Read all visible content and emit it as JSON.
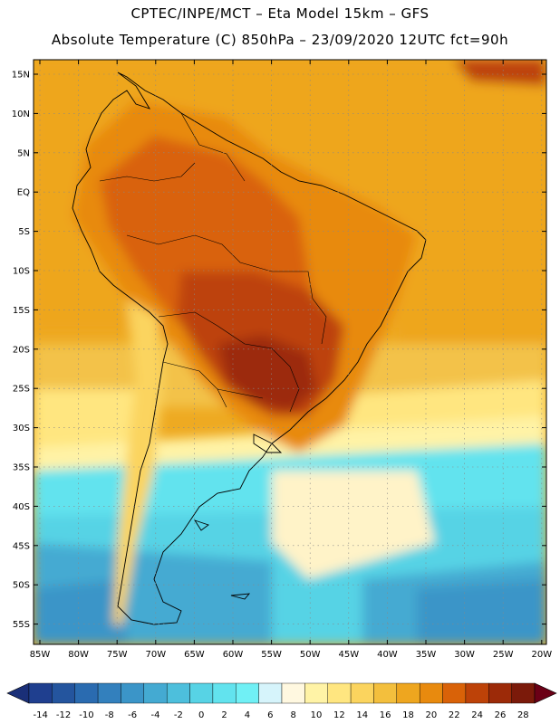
{
  "title_line1": "CPTEC/INPE/MCT –  Eta Model 15km – GFS",
  "title_line2": "Absolute Temperature (C) 850hPa – 23/09/2020 12UTC fct=90h",
  "lat_labels": [
    "15N",
    "10N",
    "5N",
    "EQ",
    "5S",
    "10S",
    "15S",
    "20S",
    "25S",
    "30S",
    "35S",
    "40S",
    "45S",
    "50S",
    "55S"
  ],
  "lon_labels": [
    "85W",
    "80W",
    "75W",
    "70W",
    "65W",
    "60W",
    "55W",
    "50W",
    "45W",
    "40W",
    "35W",
    "30W",
    "25W",
    "20W"
  ],
  "colorbar": {
    "labels": [
      "-14",
      "-12",
      "-10",
      "-8",
      "-6",
      "-4",
      "-2",
      "0",
      "2",
      "4",
      "6",
      "8",
      "10",
      "12",
      "14",
      "16",
      "18",
      "20",
      "22",
      "24",
      "26",
      "28"
    ],
    "colors": [
      "#1f3f8f",
      "#24559e",
      "#2a6bb0",
      "#3380bd",
      "#3b95c8",
      "#44aad2",
      "#4dbfdc",
      "#57d3e5",
      "#62e3ee",
      "#70f0f5",
      "#d6f4fb",
      "#fff8e0",
      "#fff3a6",
      "#ffe680",
      "#fbd45e",
      "#f3bf3d",
      "#eea61f",
      "#e88a0e",
      "#d96208",
      "#bd4208",
      "#9c2a08",
      "#7b1a0a"
    ],
    "under_color": "#1a2f78",
    "over_color": "#6b0016"
  }
}
